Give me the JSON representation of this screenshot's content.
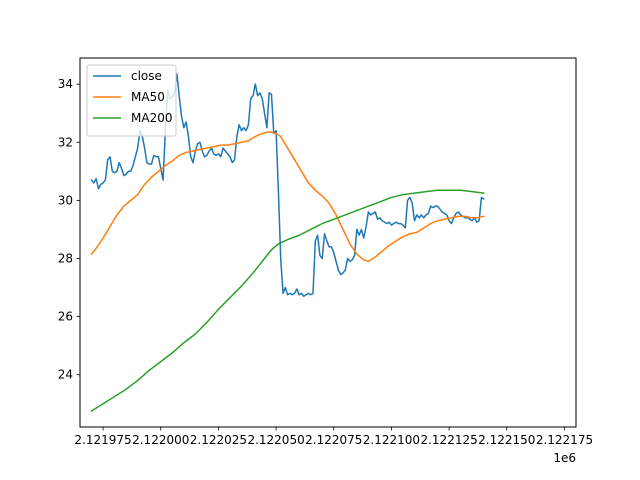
{
  "chart_data": {
    "type": "line",
    "title": "",
    "xlabel": "",
    "ylabel": "",
    "x_offset_label": "1e6",
    "xlim": [
      2121965,
      2122180
    ],
    "ylim": [
      22.2,
      34.9
    ],
    "grid": false,
    "legend_position": "top-left",
    "x_ticks": [
      2121975,
      2122000,
      2122025,
      2122050,
      2122075,
      2122100,
      2122125,
      2122150,
      2122175
    ],
    "x_tick_labels": [
      "2.121975",
      "2.122000",
      "2.122025",
      "2.122050",
      "2.122075",
      "2.122100",
      "2.122125",
      "2.122150",
      "2.122175"
    ],
    "y_ticks": [
      24,
      26,
      28,
      30,
      32,
      34
    ],
    "y_tick_labels": [
      "24",
      "26",
      "28",
      "30",
      "32",
      "34"
    ],
    "series": [
      {
        "name": "close",
        "color": "#1f77b4",
        "points": [
          [
            2121970,
            30.7
          ],
          [
            2121971,
            30.6
          ],
          [
            2121972,
            30.75
          ],
          [
            2121973,
            30.4
          ],
          [
            2121974,
            30.55
          ],
          [
            2121975,
            30.6
          ],
          [
            2121976,
            30.7
          ],
          [
            2121977,
            31.4
          ],
          [
            2121978,
            31.5
          ],
          [
            2121979,
            31.0
          ],
          [
            2121980,
            30.95
          ],
          [
            2121981,
            31.0
          ],
          [
            2121982,
            31.3
          ],
          [
            2121983,
            31.1
          ],
          [
            2121984,
            30.85
          ],
          [
            2121985,
            30.9
          ],
          [
            2121986,
            31.0
          ],
          [
            2121987,
            31.0
          ],
          [
            2121988,
            31.2
          ],
          [
            2121989,
            31.5
          ],
          [
            2121990,
            31.8
          ],
          [
            2121991,
            32.4
          ],
          [
            2121992,
            32.2
          ],
          [
            2121993,
            31.8
          ],
          [
            2121994,
            31.3
          ],
          [
            2121995,
            31.25
          ],
          [
            2121996,
            31.25
          ],
          [
            2121997,
            31.55
          ],
          [
            2121998,
            31.5
          ],
          [
            2121999,
            31.5
          ],
          [
            2122000,
            31.1
          ],
          [
            2122001,
            30.7
          ],
          [
            2122002,
            32.4
          ],
          [
            2122003,
            33.8
          ],
          [
            2122004,
            33.5
          ],
          [
            2122005,
            33.55
          ],
          [
            2122006,
            33.7
          ],
          [
            2122007,
            34.35
          ],
          [
            2122008,
            33.6
          ],
          [
            2122009,
            32.9
          ],
          [
            2122010,
            32.5
          ],
          [
            2122011,
            32.7
          ],
          [
            2122012,
            32.2
          ],
          [
            2122013,
            31.5
          ],
          [
            2122014,
            31.3
          ],
          [
            2122015,
            31.7
          ],
          [
            2122016,
            31.95
          ],
          [
            2122017,
            32.0
          ],
          [
            2122018,
            31.7
          ],
          [
            2122019,
            31.5
          ],
          [
            2122020,
            31.55
          ],
          [
            2122021,
            31.7
          ],
          [
            2122022,
            31.8
          ],
          [
            2122023,
            31.6
          ],
          [
            2122024,
            31.55
          ],
          [
            2122025,
            31.6
          ],
          [
            2122026,
            31.5
          ],
          [
            2122027,
            31.8
          ],
          [
            2122028,
            31.7
          ],
          [
            2122029,
            31.6
          ],
          [
            2122030,
            31.5
          ],
          [
            2122031,
            31.3
          ],
          [
            2122032,
            31.4
          ],
          [
            2122033,
            32.2
          ],
          [
            2122034,
            32.6
          ],
          [
            2122035,
            32.4
          ],
          [
            2122036,
            32.5
          ],
          [
            2122037,
            32.4
          ],
          [
            2122038,
            32.6
          ],
          [
            2122039,
            33.5
          ],
          [
            2122040,
            33.6
          ],
          [
            2122041,
            34.0
          ],
          [
            2122042,
            33.6
          ],
          [
            2122043,
            33.7
          ],
          [
            2122044,
            33.5
          ],
          [
            2122045,
            33.0
          ],
          [
            2122046,
            32.5
          ],
          [
            2122047,
            33.7
          ],
          [
            2122048,
            33.65
          ],
          [
            2122049,
            32.3
          ],
          [
            2122050,
            32.4
          ],
          [
            2122051,
            30.3
          ],
          [
            2122052,
            28.0
          ],
          [
            2122053,
            26.8
          ],
          [
            2122054,
            27.0
          ],
          [
            2122055,
            26.75
          ],
          [
            2122056,
            26.8
          ],
          [
            2122057,
            26.75
          ],
          [
            2122058,
            26.8
          ],
          [
            2122059,
            26.95
          ],
          [
            2122060,
            26.75
          ],
          [
            2122061,
            26.8
          ],
          [
            2122062,
            26.7
          ],
          [
            2122063,
            26.75
          ],
          [
            2122064,
            26.8
          ],
          [
            2122065,
            26.75
          ],
          [
            2122066,
            26.8
          ],
          [
            2122067,
            28.6
          ],
          [
            2122068,
            28.8
          ],
          [
            2122069,
            28.1
          ],
          [
            2122070,
            28.0
          ],
          [
            2122071,
            28.85
          ],
          [
            2122072,
            28.6
          ],
          [
            2122073,
            28.4
          ],
          [
            2122074,
            28.4
          ],
          [
            2122075,
            28.2
          ],
          [
            2122076,
            27.9
          ],
          [
            2122077,
            27.6
          ],
          [
            2122078,
            27.45
          ],
          [
            2122079,
            27.5
          ],
          [
            2122080,
            27.6
          ],
          [
            2122081,
            28.0
          ],
          [
            2122082,
            27.9
          ],
          [
            2122083,
            27.95
          ],
          [
            2122084,
            28.1
          ],
          [
            2122085,
            29.0
          ],
          [
            2122086,
            28.8
          ],
          [
            2122087,
            29.0
          ],
          [
            2122088,
            28.7
          ],
          [
            2122089,
            29.1
          ],
          [
            2122090,
            29.6
          ],
          [
            2122091,
            29.5
          ],
          [
            2122092,
            29.55
          ],
          [
            2122093,
            29.6
          ],
          [
            2122094,
            29.35
          ],
          [
            2122095,
            29.4
          ],
          [
            2122096,
            29.3
          ],
          [
            2122097,
            29.25
          ],
          [
            2122098,
            29.2
          ],
          [
            2122099,
            29.25
          ],
          [
            2122100,
            29.15
          ],
          [
            2122101,
            29.2
          ],
          [
            2122102,
            29.25
          ],
          [
            2122103,
            29.2
          ],
          [
            2122104,
            29.2
          ],
          [
            2122105,
            29.15
          ],
          [
            2122106,
            29.05
          ],
          [
            2122107,
            30.0
          ],
          [
            2122108,
            30.1
          ],
          [
            2122109,
            29.9
          ],
          [
            2122110,
            29.3
          ],
          [
            2122111,
            29.5
          ],
          [
            2122112,
            29.4
          ],
          [
            2122113,
            29.5
          ],
          [
            2122114,
            29.4
          ],
          [
            2122115,
            29.5
          ],
          [
            2122116,
            29.55
          ],
          [
            2122117,
            29.8
          ],
          [
            2122118,
            29.75
          ],
          [
            2122119,
            29.8
          ],
          [
            2122120,
            29.8
          ],
          [
            2122121,
            29.7
          ],
          [
            2122122,
            29.6
          ],
          [
            2122123,
            29.55
          ],
          [
            2122124,
            29.5
          ],
          [
            2122125,
            29.3
          ],
          [
            2122126,
            29.2
          ],
          [
            2122127,
            29.4
          ],
          [
            2122128,
            29.55
          ],
          [
            2122129,
            29.6
          ],
          [
            2122130,
            29.5
          ],
          [
            2122131,
            29.45
          ],
          [
            2122132,
            29.4
          ],
          [
            2122133,
            29.4
          ],
          [
            2122134,
            29.35
          ],
          [
            2122135,
            29.3
          ],
          [
            2122136,
            29.4
          ],
          [
            2122137,
            29.25
          ],
          [
            2122138,
            29.3
          ],
          [
            2122139,
            30.1
          ],
          [
            2122140,
            30.05
          ]
        ]
      },
      {
        "name": "MA50",
        "color": "#ff7f0e",
        "points": [
          [
            2121970,
            28.15
          ],
          [
            2121972,
            28.35
          ],
          [
            2121975,
            28.7
          ],
          [
            2121978,
            29.1
          ],
          [
            2121981,
            29.5
          ],
          [
            2121984,
            29.8
          ],
          [
            2121987,
            30.0
          ],
          [
            2121990,
            30.2
          ],
          [
            2121993,
            30.55
          ],
          [
            2121996,
            30.8
          ],
          [
            2121999,
            31.0
          ],
          [
            2122002,
            31.2
          ],
          [
            2122005,
            31.35
          ],
          [
            2122008,
            31.55
          ],
          [
            2122011,
            31.65
          ],
          [
            2122014,
            31.7
          ],
          [
            2122017,
            31.75
          ],
          [
            2122020,
            31.8
          ],
          [
            2122023,
            31.85
          ],
          [
            2122026,
            31.9
          ],
          [
            2122029,
            31.9
          ],
          [
            2122032,
            31.95
          ],
          [
            2122035,
            32.0
          ],
          [
            2122038,
            32.05
          ],
          [
            2122041,
            32.2
          ],
          [
            2122044,
            32.3
          ],
          [
            2122046,
            32.35
          ],
          [
            2122048,
            32.35
          ],
          [
            2122050,
            32.3
          ],
          [
            2122052,
            32.2
          ],
          [
            2122055,
            31.8
          ],
          [
            2122058,
            31.4
          ],
          [
            2122061,
            31.0
          ],
          [
            2122064,
            30.6
          ],
          [
            2122067,
            30.35
          ],
          [
            2122070,
            30.15
          ],
          [
            2122073,
            29.9
          ],
          [
            2122076,
            29.5
          ],
          [
            2122079,
            29.0
          ],
          [
            2122082,
            28.5
          ],
          [
            2122085,
            28.15
          ],
          [
            2122088,
            27.95
          ],
          [
            2122090,
            27.9
          ],
          [
            2122093,
            28.05
          ],
          [
            2122096,
            28.25
          ],
          [
            2122099,
            28.45
          ],
          [
            2122102,
            28.6
          ],
          [
            2122105,
            28.75
          ],
          [
            2122108,
            28.85
          ],
          [
            2122111,
            28.9
          ],
          [
            2122114,
            29.05
          ],
          [
            2122117,
            29.2
          ],
          [
            2122120,
            29.3
          ],
          [
            2122123,
            29.35
          ],
          [
            2122126,
            29.4
          ],
          [
            2122129,
            29.45
          ],
          [
            2122132,
            29.45
          ],
          [
            2122135,
            29.4
          ],
          [
            2122137,
            29.4
          ],
          [
            2122140,
            29.45
          ]
        ]
      },
      {
        "name": "MA200",
        "color": "#2ca02c",
        "points": [
          [
            2121970,
            22.75
          ],
          [
            2121975,
            23.0
          ],
          [
            2121980,
            23.25
          ],
          [
            2121985,
            23.5
          ],
          [
            2121990,
            23.8
          ],
          [
            2121995,
            24.15
          ],
          [
            2122000,
            24.45
          ],
          [
            2122005,
            24.75
          ],
          [
            2122010,
            25.1
          ],
          [
            2122015,
            25.4
          ],
          [
            2122020,
            25.8
          ],
          [
            2122025,
            26.25
          ],
          [
            2122030,
            26.65
          ],
          [
            2122035,
            27.05
          ],
          [
            2122040,
            27.5
          ],
          [
            2122045,
            28.0
          ],
          [
            2122048,
            28.3
          ],
          [
            2122051,
            28.5
          ],
          [
            2122055,
            28.65
          ],
          [
            2122060,
            28.8
          ],
          [
            2122065,
            29.0
          ],
          [
            2122070,
            29.2
          ],
          [
            2122075,
            29.35
          ],
          [
            2122080,
            29.5
          ],
          [
            2122085,
            29.65
          ],
          [
            2122090,
            29.8
          ],
          [
            2122095,
            29.95
          ],
          [
            2122100,
            30.1
          ],
          [
            2122105,
            30.2
          ],
          [
            2122110,
            30.25
          ],
          [
            2122115,
            30.3
          ],
          [
            2122120,
            30.35
          ],
          [
            2122125,
            30.35
          ],
          [
            2122130,
            30.35
          ],
          [
            2122135,
            30.3
          ],
          [
            2122140,
            30.25
          ]
        ]
      }
    ]
  }
}
